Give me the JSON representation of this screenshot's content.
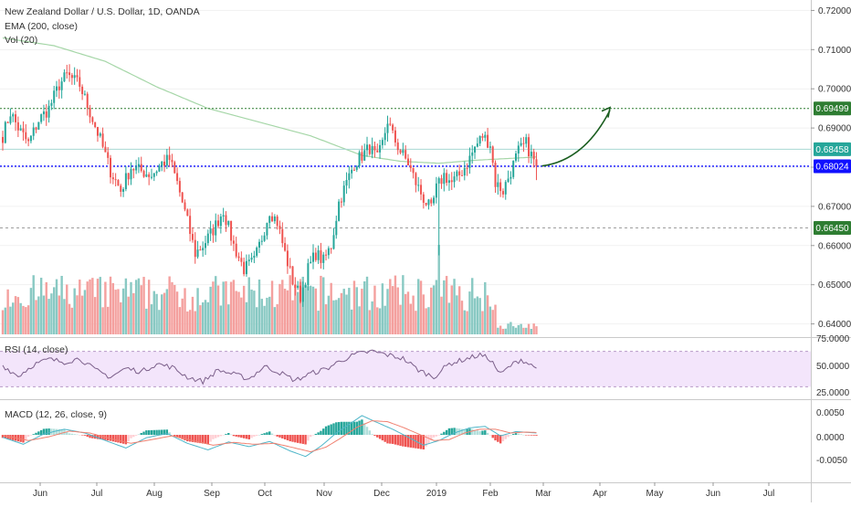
{
  "header": {
    "symbol_title": "New Zealand Dollar / U.S. Dollar, 1D, OANDA",
    "ema_label": "EMA (200, close)",
    "vol_label": "Vol (20)"
  },
  "rsi_panel": {
    "label": "RSI (14, close)",
    "ticks": [
      "75.0000",
      "50.0000",
      "25.0000"
    ]
  },
  "macd_panel": {
    "label": "MACD (12, 26, close, 9)",
    "ticks": [
      "0.0050",
      "0.0000",
      "-0.0050"
    ]
  },
  "colors": {
    "up": "#26a69a",
    "down": "#ef5350",
    "vol_up": "#89c9c3",
    "vol_down": "#f4a09e",
    "ema": "#a5d6a7",
    "resistance": "#2e7d32",
    "current": "#1010ff",
    "support": "#9e9e9e",
    "arrow": "#1b5e20",
    "rsi": "#7b5f8a",
    "rsi_band": "#f3e5fb",
    "macd_line": "#4fb6c9",
    "signal_line": "#f08070"
  },
  "chart_data": [
    {
      "type": "candlestick",
      "title": "New Zealand Dollar / U.S. Dollar, 1D, OANDA",
      "ylim": [
        0.6385,
        0.7215
      ],
      "y_ticks": [
        "0.72000",
        "0.71000",
        "0.70000",
        "0.69000",
        "0.68000",
        "0.67000",
        "0.66000",
        "0.65000",
        "0.64000"
      ],
      "x_ticks": [
        "Jun",
        "Jul",
        "Aug",
        "Sep",
        "Oct",
        "Nov",
        "Dec",
        "2019",
        "Feb",
        "Mar",
        "Apr",
        "May",
        "Jun",
        "Jul"
      ],
      "price_path": [
        [
          0,
          0.688
        ],
        [
          3,
          0.694
        ],
        [
          6,
          0.69
        ],
        [
          10,
          0.686
        ],
        [
          14,
          0.692
        ],
        [
          18,
          0.695
        ],
        [
          22,
          0.701
        ],
        [
          25,
          0.7035
        ],
        [
          30,
          0.701
        ],
        [
          34,
          0.694
        ],
        [
          38,
          0.687
        ],
        [
          42,
          0.679
        ],
        [
          46,
          0.674
        ],
        [
          50,
          0.68
        ],
        [
          54,
          0.679
        ],
        [
          58,
          0.678
        ],
        [
          62,
          0.681
        ],
        [
          65,
          0.682
        ],
        [
          68,
          0.676
        ],
        [
          72,
          0.666
        ],
        [
          75,
          0.658
        ],
        [
          78,
          0.66
        ],
        [
          82,
          0.664
        ],
        [
          86,
          0.669
        ],
        [
          90,
          0.66
        ],
        [
          94,
          0.654
        ],
        [
          98,
          0.656
        ],
        [
          101,
          0.662
        ],
        [
          104,
          0.669
        ],
        [
          107,
          0.666
        ],
        [
          110,
          0.658
        ],
        [
          113,
          0.651
        ],
        [
          116,
          0.647
        ],
        [
          119,
          0.654
        ],
        [
          122,
          0.658
        ],
        [
          125,
          0.656
        ],
        [
          128,
          0.66
        ],
        [
          131,
          0.671
        ],
        [
          134,
          0.676
        ],
        [
          137,
          0.681
        ],
        [
          140,
          0.683
        ],
        [
          143,
          0.685
        ],
        [
          146,
          0.682
        ],
        [
          148,
          0.686
        ],
        [
          150,
          0.692
        ],
        [
          152,
          0.688
        ],
        [
          155,
          0.684
        ],
        [
          158,
          0.681
        ],
        [
          161,
          0.676
        ],
        [
          164,
          0.672
        ],
        [
          167,
          0.669
        ],
        [
          169,
          0.6745
        ],
        [
          172,
          0.678
        ],
        [
          175,
          0.676
        ],
        [
          178,
          0.678
        ],
        [
          181,
          0.681
        ],
        [
          184,
          0.685
        ],
        [
          187,
          0.688
        ],
        [
          190,
          0.686
        ],
        [
          192,
          0.676
        ],
        [
          195,
          0.674
        ],
        [
          198,
          0.679
        ],
        [
          201,
          0.684
        ],
        [
          204,
          0.686
        ],
        [
          206,
          0.683
        ],
        [
          208,
          0.6803
        ]
      ],
      "ema_200": [
        [
          0,
          0.713
        ],
        [
          20,
          0.711
        ],
        [
          40,
          0.707
        ],
        [
          60,
          0.7005
        ],
        [
          80,
          0.695
        ],
        [
          100,
          0.6915
        ],
        [
          120,
          0.688
        ],
        [
          140,
          0.683
        ],
        [
          155,
          0.6815
        ],
        [
          170,
          0.681
        ],
        [
          185,
          0.6818
        ],
        [
          208,
          0.6826
        ]
      ],
      "levels": [
        {
          "name": "resistance",
          "value": 0.69499,
          "label": "0.69499"
        },
        {
          "name": "recent",
          "value": 0.68458,
          "label": "0.68458"
        },
        {
          "name": "current",
          "value": 0.68024,
          "label": "0.68024"
        },
        {
          "name": "support",
          "value": 0.6645,
          "label": "0.66450"
        }
      ],
      "projection_arrow": {
        "from_value": 0.6803,
        "to_value": 0.695
      }
    },
    {
      "type": "line",
      "title": "RSI (14, close)",
      "ylim": [
        18,
        82
      ],
      "bands": [
        30,
        70
      ],
      "series": [
        {
          "values": [
            [
              0,
              54
            ],
            [
              6,
              42
            ],
            [
              12,
              55
            ],
            [
              18,
              61
            ],
            [
              24,
              58
            ],
            [
              30,
              62
            ],
            [
              36,
              49
            ],
            [
              42,
              41
            ],
            [
              48,
              51
            ],
            [
              54,
              47
            ],
            [
              60,
              56
            ],
            [
              66,
              52
            ],
            [
              72,
              41
            ],
            [
              78,
              36
            ],
            [
              84,
              49
            ],
            [
              90,
              44
            ],
            [
              96,
              39
            ],
            [
              102,
              53
            ],
            [
              108,
              46
            ],
            [
              114,
              37
            ],
            [
              120,
              45
            ],
            [
              126,
              50
            ],
            [
              132,
              60
            ],
            [
              138,
              67
            ],
            [
              144,
              70
            ],
            [
              150,
              66
            ],
            [
              156,
              62
            ],
            [
              162,
              49
            ],
            [
              168,
              41
            ],
            [
              174,
              56
            ],
            [
              180,
              61
            ],
            [
              186,
              66
            ],
            [
              190,
              61
            ],
            [
              194,
              44
            ],
            [
              198,
              54
            ],
            [
              202,
              61
            ],
            [
              208,
              51
            ]
          ]
        }
      ]
    },
    {
      "type": "macd",
      "title": "MACD (12, 26, close, 9)",
      "ylim": [
        -0.0095,
        0.0068
      ],
      "macd_line": [
        [
          0,
          -0.0005
        ],
        [
          8,
          -0.002
        ],
        [
          16,
          0.0002
        ],
        [
          24,
          0.0012
        ],
        [
          32,
          0.0004
        ],
        [
          40,
          -0.0012
        ],
        [
          48,
          -0.0028
        ],
        [
          56,
          -0.0006
        ],
        [
          64,
          0.0003
        ],
        [
          72,
          -0.0018
        ],
        [
          80,
          -0.0032
        ],
        [
          88,
          -0.0015
        ],
        [
          96,
          -0.0025
        ],
        [
          104,
          -0.0014
        ],
        [
          112,
          -0.0034
        ],
        [
          118,
          -0.0046
        ],
        [
          124,
          -0.0024
        ],
        [
          130,
          0.0004
        ],
        [
          136,
          0.0026
        ],
        [
          140,
          0.0041
        ],
        [
          146,
          0.0026
        ],
        [
          152,
          0.0012
        ],
        [
          158,
          -0.0005
        ],
        [
          164,
          -0.0022
        ],
        [
          170,
          -0.0012
        ],
        [
          176,
          0.0004
        ],
        [
          182,
          0.0015
        ],
        [
          188,
          0.0018
        ],
        [
          194,
          -0.0002
        ],
        [
          200,
          0.0007
        ],
        [
          208,
          0.0004
        ]
      ],
      "signal_line": [
        [
          0,
          -0.0001
        ],
        [
          10,
          -0.0012
        ],
        [
          18,
          -0.0004
        ],
        [
          26,
          0.0008
        ],
        [
          34,
          0.0004
        ],
        [
          42,
          -0.0008
        ],
        [
          50,
          -0.0018
        ],
        [
          58,
          -0.001
        ],
        [
          66,
          -0.0002
        ],
        [
          74,
          -0.0012
        ],
        [
          82,
          -0.0022
        ],
        [
          90,
          -0.0016
        ],
        [
          98,
          -0.002
        ],
        [
          106,
          -0.0018
        ],
        [
          114,
          -0.0028
        ],
        [
          120,
          -0.0036
        ],
        [
          126,
          -0.0026
        ],
        [
          132,
          -0.0006
        ],
        [
          138,
          0.0016
        ],
        [
          144,
          0.003
        ],
        [
          150,
          0.0028
        ],
        [
          156,
          0.0016
        ],
        [
          162,
          0.0002
        ],
        [
          168,
          -0.0012
        ],
        [
          174,
          -0.001
        ],
        [
          180,
          0.0004
        ],
        [
          186,
          0.0012
        ],
        [
          192,
          0.0012
        ],
        [
          198,
          0.0004
        ],
        [
          204,
          0.0006
        ],
        [
          208,
          0.0005
        ]
      ]
    }
  ]
}
